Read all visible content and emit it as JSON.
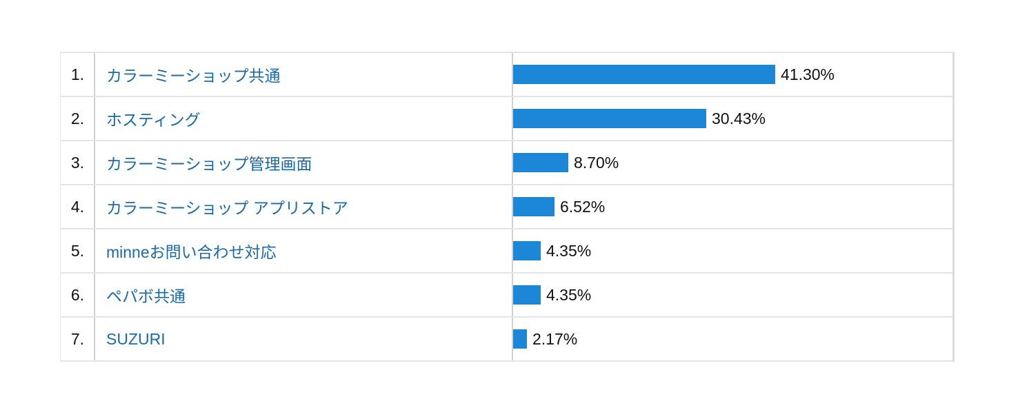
{
  "colors": {
    "bar": "#1c87d6",
    "link": "#1a6aa8",
    "border": "#e4e4e4"
  },
  "rows": [
    {
      "rank": "1.",
      "label": "カラーミーショップ共通",
      "value": 41.3,
      "pct": "41.30%"
    },
    {
      "rank": "2.",
      "label": "ホスティング",
      "value": 30.43,
      "pct": "30.43%"
    },
    {
      "rank": "3.",
      "label": "カラーミーショップ管理画面",
      "value": 8.7,
      "pct": "8.70%"
    },
    {
      "rank": "4.",
      "label": "カラーミーショップ アプリストア",
      "value": 6.52,
      "pct": "6.52%"
    },
    {
      "rank": "5.",
      "label": "minneお問い合わせ対応",
      "value": 4.35,
      "pct": "4.35%"
    },
    {
      "rank": "6.",
      "label": "ペパボ共通",
      "value": 4.35,
      "pct": "4.35%"
    },
    {
      "rank": "7.",
      "label": "SUZURI",
      "value": 2.17,
      "pct": "2.17%"
    }
  ],
  "chart_data": {
    "type": "bar",
    "orientation": "horizontal",
    "categories": [
      "カラーミーショップ共通",
      "ホスティング",
      "カラーミーショップ管理画面",
      "カラーミーショップ アプリストア",
      "minneお問い合わせ対応",
      "ペパボ共通",
      "SUZURI"
    ],
    "values": [
      41.3,
      30.43,
      8.7,
      6.52,
      4.35,
      4.35,
      2.17
    ],
    "value_labels": [
      "41.30%",
      "30.43%",
      "8.70%",
      "6.52%",
      "4.35%",
      "4.35%",
      "2.17%"
    ],
    "title": "",
    "xlabel": "",
    "ylabel": "",
    "unit": "%",
    "grid": false,
    "legend": null
  }
}
